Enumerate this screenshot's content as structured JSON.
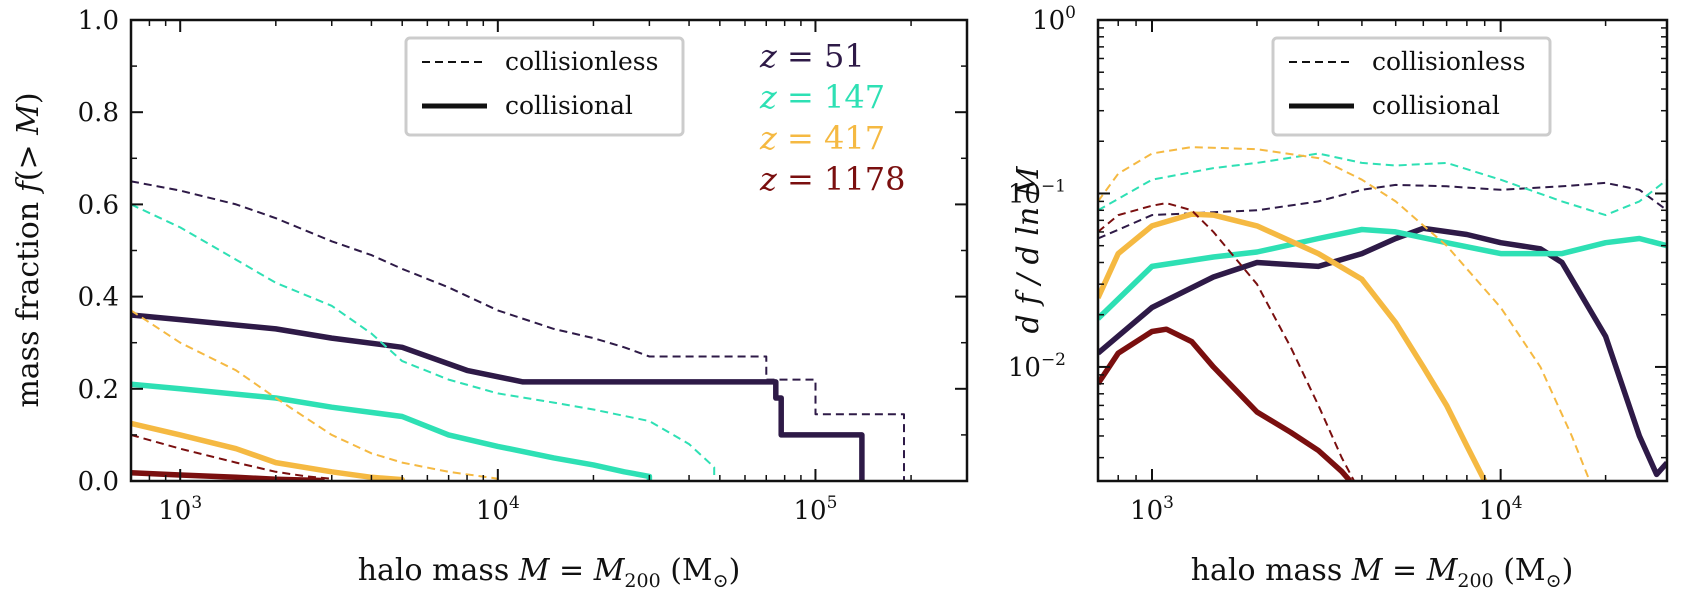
{
  "colors": {
    "z51": "#2e1a47",
    "z147": "#2ee0b4",
    "z417": "#f5b942",
    "z1178": "#7a0f0f"
  },
  "legend": {
    "collisionless": "collisionless",
    "collisional": "collisional"
  },
  "redshift_labels": [
    {
      "key": "z51",
      "text": "51"
    },
    {
      "key": "z147",
      "text": "147"
    },
    {
      "key": "z417",
      "text": "417"
    },
    {
      "key": "z1178",
      "text": "1178"
    }
  ],
  "chart_data": [
    {
      "type": "line",
      "name": "cumulative",
      "xlabel_text": "halo mass",
      "ylabel_text": "mass fraction",
      "xscale": "log",
      "xlim": [
        700,
        300000
      ],
      "ylim": [
        0,
        1
      ],
      "yticks": [
        "0.0",
        "0.2",
        "0.4",
        "0.6",
        "0.8",
        "1.0"
      ],
      "xticks": [
        {
          "base": "10",
          "exp": "3"
        },
        {
          "base": "10",
          "exp": "4"
        },
        {
          "base": "10",
          "exp": "5"
        }
      ],
      "series": [
        {
          "name": "z=51 collisionless",
          "key": "z51",
          "style": "dashed",
          "x": [
            700,
            1000,
            1500,
            2000,
            3000,
            4000,
            5000,
            7000,
            10000,
            15000,
            20000,
            25000,
            30000,
            70000,
            70000,
            100000,
            100000,
            190000,
            190000
          ],
          "y": [
            0.65,
            0.63,
            0.6,
            0.57,
            0.52,
            0.49,
            0.46,
            0.42,
            0.37,
            0.33,
            0.31,
            0.29,
            0.27,
            0.27,
            0.22,
            0.22,
            0.145,
            0.145,
            0.0
          ]
        },
        {
          "name": "z=51 collisional",
          "key": "z51",
          "style": "solid",
          "x": [
            700,
            1000,
            2000,
            3000,
            5000,
            8000,
            12000,
            75000,
            75000,
            78000,
            78000,
            140000,
            140000
          ],
          "y": [
            0.36,
            0.35,
            0.33,
            0.31,
            0.29,
            0.24,
            0.215,
            0.215,
            0.18,
            0.18,
            0.1,
            0.1,
            0.0
          ]
        },
        {
          "name": "z=147 collisionless",
          "key": "z147",
          "style": "dashed",
          "x": [
            700,
            1000,
            1500,
            2000,
            3000,
            4000,
            5000,
            7000,
            10000,
            15000,
            20000,
            30000,
            40000,
            48000,
            48000
          ],
          "y": [
            0.6,
            0.55,
            0.48,
            0.43,
            0.38,
            0.32,
            0.26,
            0.22,
            0.19,
            0.17,
            0.155,
            0.13,
            0.08,
            0.03,
            0.0
          ]
        },
        {
          "name": "z=147 collisional",
          "key": "z147",
          "style": "solid",
          "x": [
            700,
            1000,
            2000,
            3000,
            5000,
            7000,
            10000,
            15000,
            20000,
            25000,
            30000,
            30000
          ],
          "y": [
            0.21,
            0.2,
            0.18,
            0.16,
            0.14,
            0.1,
            0.075,
            0.05,
            0.035,
            0.02,
            0.01,
            0.0
          ]
        },
        {
          "name": "z=417 collisionless",
          "key": "z417",
          "style": "dashed",
          "x": [
            700,
            1000,
            1500,
            2000,
            3000,
            4000,
            5000,
            7000,
            10000,
            10000
          ],
          "y": [
            0.37,
            0.3,
            0.24,
            0.18,
            0.1,
            0.06,
            0.04,
            0.02,
            0.005,
            0.0
          ]
        },
        {
          "name": "z=417 collisional",
          "key": "z417",
          "style": "solid",
          "x": [
            700,
            1000,
            1500,
            2000,
            3000,
            4000,
            5000,
            5000
          ],
          "y": [
            0.125,
            0.1,
            0.07,
            0.04,
            0.02,
            0.008,
            0.003,
            0.0
          ]
        },
        {
          "name": "z=1178 collisionless",
          "key": "z1178",
          "style": "dashed",
          "x": [
            700,
            1000,
            1500,
            2000,
            2500,
            3000,
            3000
          ],
          "y": [
            0.1,
            0.07,
            0.04,
            0.02,
            0.01,
            0.005,
            0.0
          ]
        },
        {
          "name": "z=1178 collisional",
          "key": "z1178",
          "style": "solid",
          "x": [
            700,
            1000,
            1500,
            2000,
            2800,
            2800
          ],
          "y": [
            0.018,
            0.013,
            0.008,
            0.004,
            0.001,
            0.0
          ]
        }
      ]
    },
    {
      "type": "line",
      "name": "differential",
      "xlabel_text": "halo mass",
      "ylabel_text": "d f / d ln M",
      "xscale": "log",
      "yscale": "log",
      "xlim": [
        700,
        30000
      ],
      "ylim": [
        0.0022,
        1
      ],
      "yticks": [
        {
          "base": "10",
          "exp": "0"
        },
        {
          "base": "10",
          "exp": "−1"
        },
        {
          "base": "10",
          "exp": "−2"
        }
      ],
      "xticks": [
        {
          "base": "10",
          "exp": "3"
        },
        {
          "base": "10",
          "exp": "4"
        }
      ],
      "series": [
        {
          "name": "z=51 collisionless",
          "key": "z51",
          "style": "dashed",
          "x": [
            700,
            1000,
            1500,
            2000,
            3000,
            4000,
            5000,
            7000,
            10000,
            15000,
            20000,
            25000,
            30000
          ],
          "y": [
            0.055,
            0.075,
            0.078,
            0.08,
            0.09,
            0.105,
            0.112,
            0.11,
            0.105,
            0.11,
            0.115,
            0.105,
            0.08
          ]
        },
        {
          "name": "z=51 collisional",
          "key": "z51",
          "style": "solid",
          "x": [
            700,
            1000,
            1500,
            2000,
            3000,
            4000,
            5000,
            6000,
            8000,
            10000,
            13000,
            15000,
            20000,
            25000,
            28000,
            30000
          ],
          "y": [
            0.012,
            0.022,
            0.033,
            0.04,
            0.038,
            0.045,
            0.055,
            0.063,
            0.058,
            0.052,
            0.048,
            0.04,
            0.015,
            0.004,
            0.0024,
            0.0028
          ]
        },
        {
          "name": "z=147 collisionless",
          "key": "z147",
          "style": "dashed",
          "x": [
            700,
            1000,
            1500,
            2000,
            3000,
            4000,
            5000,
            7000,
            10000,
            15000,
            20000,
            25000,
            30000
          ],
          "y": [
            0.08,
            0.12,
            0.14,
            0.15,
            0.17,
            0.15,
            0.145,
            0.15,
            0.12,
            0.09,
            0.075,
            0.09,
            0.12
          ]
        },
        {
          "name": "z=147 collisional",
          "key": "z147",
          "style": "solid",
          "x": [
            700,
            1000,
            1500,
            2000,
            3000,
            4000,
            5000,
            7000,
            10000,
            15000,
            20000,
            25000,
            30000
          ],
          "y": [
            0.019,
            0.038,
            0.043,
            0.046,
            0.055,
            0.062,
            0.06,
            0.052,
            0.045,
            0.045,
            0.052,
            0.055,
            0.05
          ]
        },
        {
          "name": "z=417 collisionless",
          "key": "z417",
          "style": "dashed",
          "x": [
            700,
            800,
            1000,
            1300,
            2000,
            3000,
            4000,
            5000,
            7000,
            10000,
            13000,
            16000,
            18000
          ],
          "y": [
            0.09,
            0.13,
            0.17,
            0.185,
            0.18,
            0.16,
            0.12,
            0.09,
            0.05,
            0.022,
            0.01,
            0.004,
            0.0022
          ]
        },
        {
          "name": "z=417 collisional",
          "key": "z417",
          "style": "solid",
          "x": [
            700,
            800,
            1000,
            1300,
            1500,
            2000,
            3000,
            4000,
            5000,
            6000,
            7000,
            8000,
            9000
          ],
          "y": [
            0.025,
            0.045,
            0.065,
            0.076,
            0.075,
            0.065,
            0.045,
            0.032,
            0.018,
            0.01,
            0.006,
            0.0035,
            0.0022
          ]
        },
        {
          "name": "z=1178 collisionless",
          "key": "z1178",
          "style": "dashed",
          "x": [
            700,
            800,
            1000,
            1100,
            1300,
            1500,
            2000,
            2500,
            3000,
            3500,
            3800
          ],
          "y": [
            0.06,
            0.075,
            0.085,
            0.088,
            0.08,
            0.06,
            0.03,
            0.013,
            0.006,
            0.003,
            0.0022
          ]
        },
        {
          "name": "z=1178 collisional",
          "key": "z1178",
          "style": "solid",
          "x": [
            700,
            800,
            1000,
            1100,
            1300,
            1500,
            2000,
            2500,
            3000,
            3500,
            3700
          ],
          "y": [
            0.008,
            0.012,
            0.016,
            0.0165,
            0.014,
            0.01,
            0.0055,
            0.0042,
            0.0033,
            0.0025,
            0.0022
          ]
        }
      ]
    }
  ]
}
